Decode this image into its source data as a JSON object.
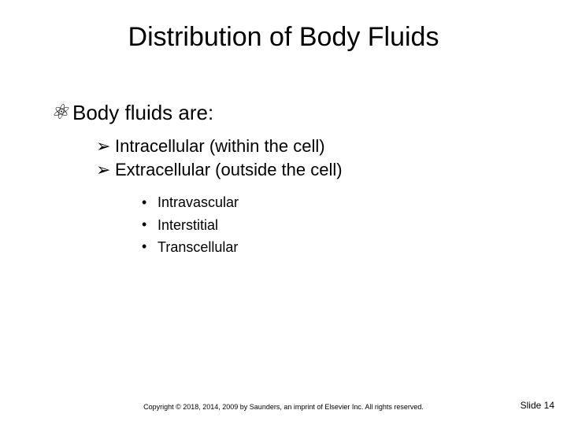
{
  "title": "Distribution of Body Fluids",
  "level1": {
    "bullet_glyph": "⚛",
    "text": "Body fluids are:"
  },
  "level2": {
    "items": [
      {
        "bullet": "➢",
        "text": "Intracellular (within the cell)"
      },
      {
        "bullet": "➢",
        "text": "Extracellular (outside the cell)"
      }
    ]
  },
  "level3": {
    "items": [
      {
        "bullet": "•",
        "text": "Intravascular"
      },
      {
        "bullet": "•",
        "text": "Interstitial"
      },
      {
        "bullet": "•",
        "text": "Transcellular"
      }
    ]
  },
  "footer": {
    "copyright": "Copyright © 2018, 2014, 2009 by Saunders, an imprint of Elsevier Inc. All rights reserved.",
    "slide_label": "Slide 14"
  }
}
